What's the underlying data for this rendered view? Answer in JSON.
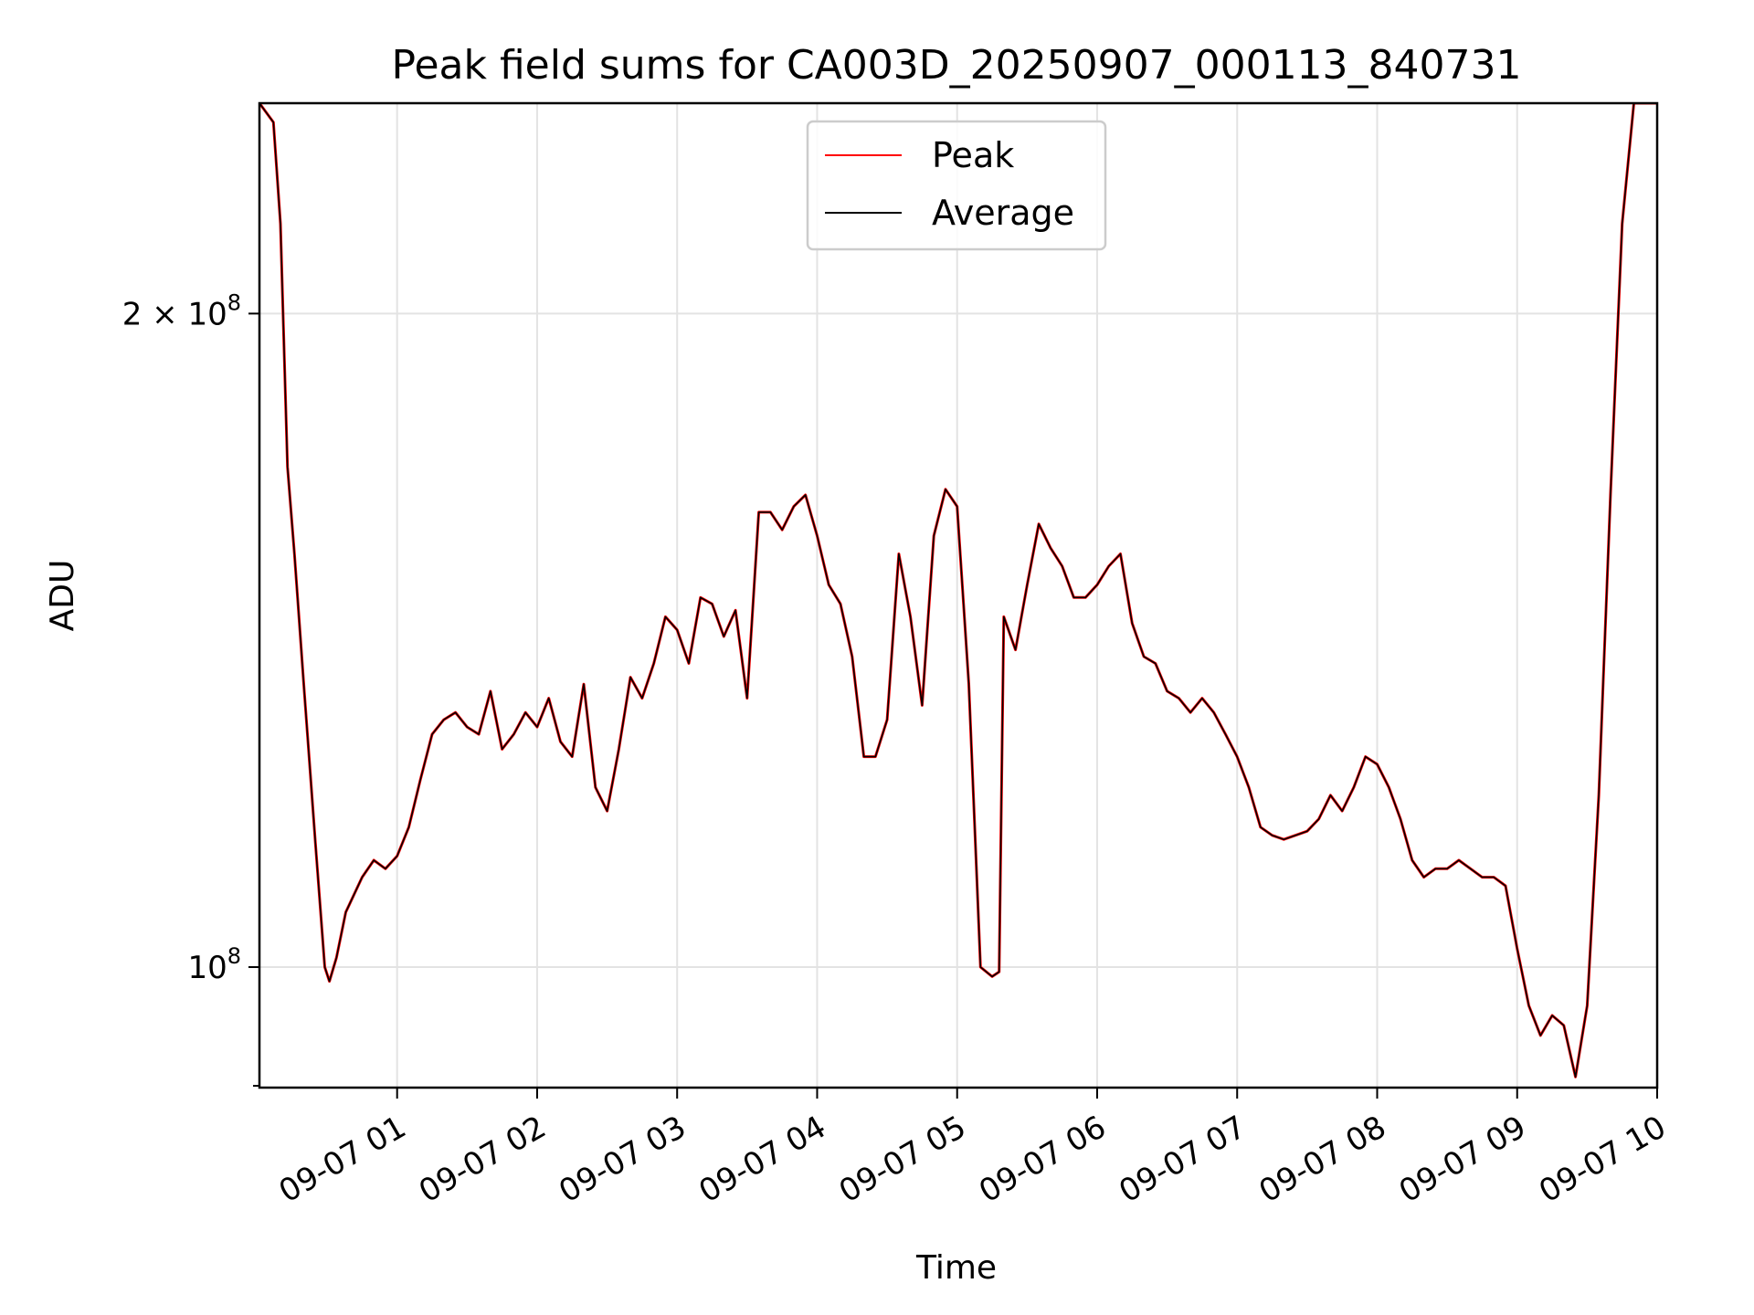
{
  "chart_data": {
    "type": "line",
    "title": "Peak field sums for CA003D_20250907_000113_840731",
    "xlabel": "Time",
    "ylabel": "ADU",
    "yscale": "log",
    "ylim": [
      88000000,
      250000000
    ],
    "xlim": [
      "2025-09-07 00:01",
      "2025-09-07 10:00"
    ],
    "grid": true,
    "legend_position": "upper center",
    "x_tick_labels": [
      "09-07 01",
      "09-07 02",
      "09-07 03",
      "09-07 04",
      "09-07 05",
      "09-07 06",
      "09-07 07",
      "09-07 08",
      "09-07 09",
      "09-07 10"
    ],
    "y_ticks": [
      {
        "value": 100000000,
        "base": "10",
        "exp": "8",
        "coef": ""
      },
      {
        "value": 200000000,
        "base": "10",
        "exp": "8",
        "coef": "2 × "
      }
    ],
    "x": [
      "2025-09-07 00:01",
      "2025-09-07 00:07",
      "2025-09-07 00:10",
      "00:13",
      "00:16",
      "00:20",
      "00:25",
      "00:29",
      "00:31",
      "00:34",
      "00:38",
      "00:45",
      "00:50",
      "00:55",
      "01:00",
      "01:05",
      "01:10",
      "01:15",
      "01:20",
      "01:25",
      "01:30",
      "01:35",
      "01:40",
      "01:45",
      "01:50",
      "01:55",
      "02:00",
      "02:05",
      "02:10",
      "02:15",
      "02:20",
      "02:25",
      "02:30",
      "02:35",
      "02:40",
      "02:45",
      "02:50",
      "02:55",
      "03:00",
      "03:05",
      "03:10",
      "03:15",
      "03:20",
      "03:25",
      "03:30",
      "03:35",
      "03:40",
      "03:45",
      "03:50",
      "03:55",
      "04:00",
      "04:05",
      "04:10",
      "04:15",
      "04:20",
      "04:25",
      "04:30",
      "04:35",
      "04:40",
      "04:45",
      "04:50",
      "04:55",
      "05:00",
      "05:05",
      "05:10",
      "05:15",
      "05:18",
      "05:20",
      "05:25",
      "05:30",
      "05:35",
      "05:40",
      "05:45",
      "05:50",
      "05:55",
      "06:00",
      "06:05",
      "06:10",
      "06:15",
      "06:20",
      "06:25",
      "06:30",
      "06:35",
      "06:40",
      "06:45",
      "06:50",
      "06:55",
      "07:00",
      "07:05",
      "07:10",
      "07:15",
      "07:20",
      "07:25",
      "07:30",
      "07:35",
      "07:40",
      "07:45",
      "07:50",
      "07:55",
      "08:00",
      "08:05",
      "08:10",
      "08:15",
      "08:20",
      "08:25",
      "08:30",
      "08:35",
      "08:40",
      "08:45",
      "08:50",
      "08:55",
      "09:00",
      "09:05",
      "09:10",
      "09:15",
      "09:20",
      "09:25",
      "09:30",
      "09:35",
      "09:40",
      "09:45",
      "09:50",
      "09:55",
      "10:00"
    ],
    "series": [
      {
        "name": "Peak",
        "color": "#ff0000",
        "values": [
          250000000,
          245000000,
          220000000,
          170000000,
          155000000,
          135000000,
          114000000,
          100000000,
          98500000,
          101000000,
          106000000,
          110000000,
          112000000,
          111000000,
          112500000,
          116000000,
          122000000,
          128000000,
          130000000,
          131000000,
          129000000,
          128000000,
          134000000,
          126000000,
          128000000,
          131000000,
          129000000,
          133000000,
          127000000,
          125000000,
          135000000,
          121000000,
          118000000,
          126000000,
          136000000,
          133000000,
          138000000,
          145000000,
          143000000,
          138000000,
          148000000,
          147000000,
          142000000,
          146000000,
          133000000,
          162000000,
          162000000,
          159000000,
          163000000,
          165000000,
          158000000,
          150000000,
          147000000,
          139000000,
          125000000,
          125000000,
          130000000,
          155000000,
          145000000,
          132000000,
          158000000,
          166000000,
          163000000,
          135000000,
          100000000,
          99000000,
          99500000,
          145000000,
          140000000,
          150000000,
          160000000,
          156000000,
          153000000,
          148000000,
          148000000,
          150000000,
          153000000,
          155000000,
          144000000,
          139000000,
          138000000,
          134000000,
          133000000,
          131000000,
          133000000,
          131000000,
          128000000,
          125000000,
          121000000,
          116000000,
          115000000,
          114500000,
          115000000,
          115500000,
          117000000,
          120000000,
          118000000,
          121000000,
          125000000,
          124000000,
          121000000,
          117000000,
          112000000,
          110000000,
          111000000,
          111000000,
          112000000,
          111000000,
          110000000,
          110000000,
          109000000,
          102000000,
          96000000,
          93000000,
          95000000,
          94000000,
          89000000,
          96000000,
          120000000,
          165000000,
          220000000,
          250000000,
          250000000,
          250000000
        ]
      },
      {
        "name": "Average",
        "color": "#000000",
        "values": [
          250000000,
          245000000,
          220000000,
          170000000,
          155000000,
          135000000,
          114000000,
          100000000,
          98500000,
          101000000,
          106000000,
          110000000,
          112000000,
          111000000,
          112500000,
          116000000,
          122000000,
          128000000,
          130000000,
          131000000,
          129000000,
          128000000,
          134000000,
          126000000,
          128000000,
          131000000,
          129000000,
          133000000,
          127000000,
          125000000,
          135000000,
          121000000,
          118000000,
          126000000,
          136000000,
          133000000,
          138000000,
          145000000,
          143000000,
          138000000,
          148000000,
          147000000,
          142000000,
          146000000,
          133000000,
          162000000,
          162000000,
          159000000,
          163000000,
          165000000,
          158000000,
          150000000,
          147000000,
          139000000,
          125000000,
          125000000,
          130000000,
          155000000,
          145000000,
          132000000,
          158000000,
          166000000,
          163000000,
          135000000,
          100000000,
          99000000,
          99500000,
          145000000,
          140000000,
          150000000,
          160000000,
          156000000,
          153000000,
          148000000,
          148000000,
          150000000,
          153000000,
          155000000,
          144000000,
          139000000,
          138000000,
          134000000,
          133000000,
          131000000,
          133000000,
          131000000,
          128000000,
          125000000,
          121000000,
          116000000,
          115000000,
          114500000,
          115000000,
          115500000,
          117000000,
          120000000,
          118000000,
          121000000,
          125000000,
          124000000,
          121000000,
          117000000,
          112000000,
          110000000,
          111000000,
          111000000,
          112000000,
          111000000,
          110000000,
          110000000,
          109000000,
          102000000,
          96000000,
          93000000,
          95000000,
          94000000,
          89000000,
          96000000,
          120000000,
          165000000,
          220000000,
          250000000,
          250000000,
          250000000
        ]
      }
    ]
  }
}
